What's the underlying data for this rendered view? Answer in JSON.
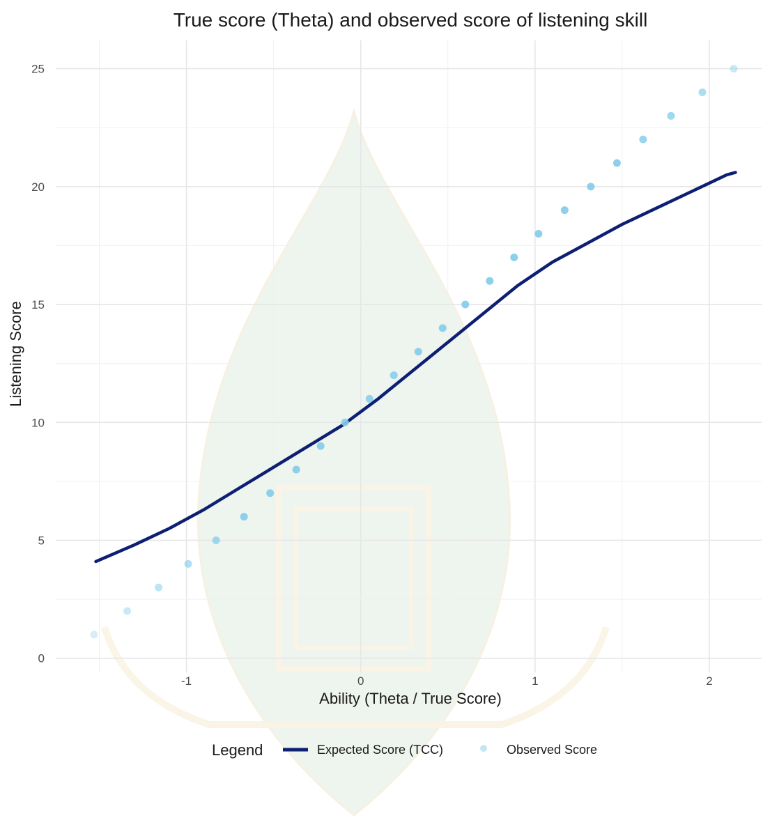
{
  "chart_data": {
    "type": "scatter",
    "title": "True score (Theta) and observed score of listening skill",
    "xlabel": "Ability (Theta / True Score)",
    "ylabel": "Listening Score",
    "xlim": [
      -1.75,
      2.3
    ],
    "ylim": [
      -0.6,
      26.2
    ],
    "x_ticks": [
      -1,
      0,
      1,
      2
    ],
    "x_tick_labels": [
      "-1",
      "0",
      "1",
      "2"
    ],
    "y_ticks": [
      0,
      5,
      10,
      15,
      20,
      25
    ],
    "y_tick_labels": [
      "0",
      "5",
      "10",
      "15",
      "20",
      "25"
    ],
    "grid": true,
    "legend": {
      "title": "Legend",
      "position": "bottom",
      "entries": [
        "Expected Score (TCC)",
        "Observed Score"
      ]
    },
    "series": [
      {
        "name": "Expected Score (TCC)",
        "kind": "line",
        "color": "#0d1f73",
        "x": [
          -1.52,
          -1.3,
          -1.1,
          -0.9,
          -0.7,
          -0.5,
          -0.3,
          -0.1,
          0.1,
          0.3,
          0.5,
          0.7,
          0.9,
          1.1,
          1.3,
          1.5,
          1.7,
          1.9,
          2.1,
          2.15
        ],
        "y": [
          4.1,
          4.8,
          5.5,
          6.3,
          7.2,
          8.1,
          9.0,
          9.9,
          11.0,
          12.2,
          13.4,
          14.6,
          15.8,
          16.8,
          17.6,
          18.4,
          19.1,
          19.8,
          20.5,
          20.6
        ]
      },
      {
        "name": "Observed Score",
        "kind": "points",
        "color": "#87ceeb",
        "x": [
          -1.53,
          -1.34,
          -1.16,
          -0.99,
          -0.83,
          -0.67,
          -0.52,
          -0.37,
          -0.23,
          -0.09,
          0.05,
          0.19,
          0.33,
          0.47,
          0.6,
          0.74,
          0.88,
          1.02,
          1.17,
          1.32,
          1.47,
          1.62,
          1.78,
          1.96,
          2.14
        ],
        "y": [
          1,
          2,
          3,
          4,
          5,
          6,
          7,
          8,
          9,
          10,
          11,
          12,
          13,
          14,
          15,
          16,
          17,
          18,
          19,
          20,
          21,
          22,
          23,
          24,
          25
        ],
        "opacity": [
          0.35,
          0.45,
          0.55,
          0.65,
          0.8,
          0.95,
          0.95,
          0.95,
          0.95,
          0.9,
          0.9,
          0.9,
          0.95,
          0.95,
          0.95,
          0.95,
          0.95,
          0.95,
          0.95,
          0.95,
          0.95,
          0.85,
          0.8,
          0.7,
          0.45
        ]
      }
    ]
  }
}
